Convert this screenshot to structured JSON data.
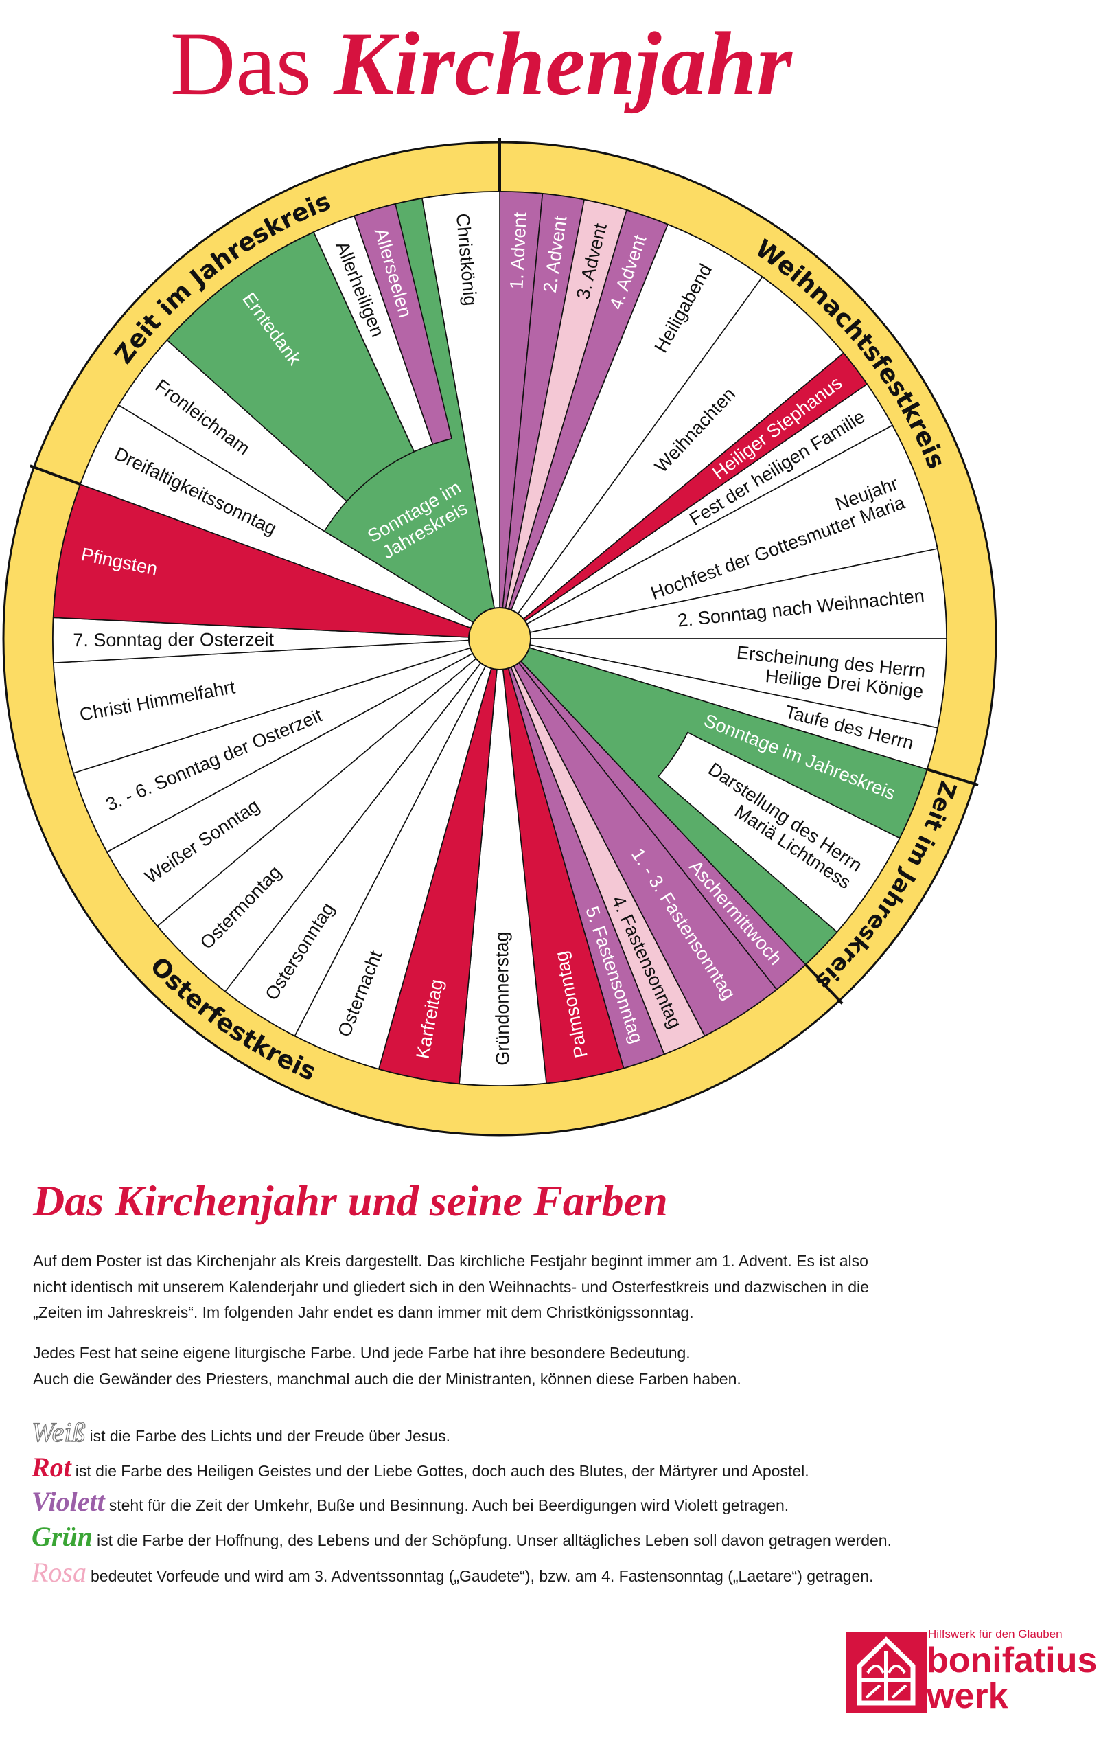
{
  "title": {
    "part1": "Das",
    "part2": "Kirchenjahr"
  },
  "colors": {
    "violet": "#b565a7",
    "rosa": "#f4c8d5",
    "red": "#d6123f",
    "green": "#5aad69",
    "white": "#ffffff",
    "yellow": "#fcdc64"
  },
  "wheel": {
    "circles": [
      {
        "label": "Weihnachtsfestkreis"
      },
      {
        "label": "Zeit im Jahreskreis"
      },
      {
        "label": "Osterfestkreis"
      },
      {
        "label": "Zeit im Jahreskreis"
      }
    ],
    "segments": [
      {
        "lines": [
          "1. Advent"
        ],
        "color": "violet"
      },
      {
        "lines": [
          "2. Advent"
        ],
        "color": "violet"
      },
      {
        "lines": [
          "3. Advent"
        ],
        "color": "rosa"
      },
      {
        "lines": [
          "4. Advent"
        ],
        "color": "violet"
      },
      {
        "lines": [
          "Heiligabend"
        ],
        "color": "white"
      },
      {
        "lines": [
          "Weihnachten"
        ],
        "color": "white"
      },
      {
        "lines": [
          "Heiliger Stephanus"
        ],
        "color": "red"
      },
      {
        "lines": [
          "Fest der heiligen Familie"
        ],
        "color": "white"
      },
      {
        "lines": [
          "Neujahr",
          "Hochfest der Gottesmutter Maria"
        ],
        "color": "white"
      },
      {
        "lines": [
          "2. Sonntag nach Weihnachten"
        ],
        "color": "white"
      },
      {
        "lines": [
          "Erscheinung des Herrn",
          "Heilige Drei Könige"
        ],
        "color": "white"
      },
      {
        "lines": [
          "Taufe des Herrn"
        ],
        "color": "white"
      },
      {
        "lines": [
          "Sonntage im Jahreskreis"
        ],
        "color": "green"
      },
      {
        "lines": [
          "Darstellung des Herrn",
          "Mariä Lichtmess"
        ],
        "color": "white"
      },
      {
        "lines": [
          "Aschermittwoch"
        ],
        "color": "violet"
      },
      {
        "lines": [
          "1. - 3. Fastensonntag"
        ],
        "color": "violet"
      },
      {
        "lines": [
          "4. Fastensonntag"
        ],
        "color": "rosa"
      },
      {
        "lines": [
          "5. Fastensonntag"
        ],
        "color": "violet"
      },
      {
        "lines": [
          "Palmsonntag"
        ],
        "color": "red"
      },
      {
        "lines": [
          "Gründonnerstag"
        ],
        "color": "white"
      },
      {
        "lines": [
          "Karfreitag"
        ],
        "color": "red"
      },
      {
        "lines": [
          "Osternacht"
        ],
        "color": "white"
      },
      {
        "lines": [
          "Ostersonntag"
        ],
        "color": "white"
      },
      {
        "lines": [
          "Ostermontag"
        ],
        "color": "white"
      },
      {
        "lines": [
          "Weißer Sonntag"
        ],
        "color": "white"
      },
      {
        "lines": [
          "3. - 6. Sonntag der Osterzeit"
        ],
        "color": "white"
      },
      {
        "lines": [
          "Christi Himmelfahrt"
        ],
        "color": "white"
      },
      {
        "lines": [
          "7. Sonntag der Osterzeit"
        ],
        "color": "white"
      },
      {
        "lines": [
          "Pfingsten"
        ],
        "color": "red"
      },
      {
        "lines": [
          "Dreifaltigkeitssonntag"
        ],
        "color": "white"
      },
      {
        "lines": [
          "Sonntage im",
          "Jahreskreis"
        ],
        "color": "green"
      },
      {
        "lines": [
          "Fronleichnam"
        ],
        "color": "white"
      },
      {
        "lines": [
          "Erntedank"
        ],
        "color": "green"
      },
      {
        "lines": [
          "Allerheiligen"
        ],
        "color": "white"
      },
      {
        "lines": [
          "Allerseelen"
        ],
        "color": "violet"
      },
      {
        "lines": [
          "Christkönig"
        ],
        "color": "white"
      }
    ]
  },
  "section": {
    "heading": "Das Kirchenjahr und seine Farben",
    "para1": [
      "Auf dem Poster ist das Kirchenjahr als Kreis dargestellt. Das kirchliche Festjahr beginnt immer am 1. Advent. Es ist also",
      "nicht identisch mit unserem Kalenderjahr und gliedert sich in den Weihnachts- und Osterfestkreis und dazwischen in die",
      "„Zeiten im Jahreskreis“. Im folgenden Jahr endet es dann immer mit dem Christkönigssonntag."
    ],
    "para2": [
      "Jedes Fest hat seine eigene liturgische Farbe. Und jede Farbe hat ihre besondere Bedeutung.",
      "Auch die Gewänder des Priesters, manchmal auch die der Ministranten, können diese Farben haben."
    ],
    "colors": [
      {
        "word": "Weiß",
        "text": "ist die Farbe des Lichts und der Freude über Jesus.",
        "hex": "#ffffff"
      },
      {
        "word": "Rot",
        "text": "ist die Farbe des Heiligen Geistes und der Liebe Gottes, doch auch des Blutes, der Märtyrer und Apostel.",
        "hex": "#d6123f"
      },
      {
        "word": "Violett",
        "text": "steht für die Zeit der Umkehr, Buße und Besinnung. Auch bei Beerdigungen wird Violett getragen.",
        "hex": "#9b5fa8"
      },
      {
        "word": "Grün",
        "text": "ist die Farbe der Hoffnung, des Lebens und der Schöpfung. Unser alltägliches Leben soll davon getragen werden.",
        "hex": "#3aa535"
      },
      {
        "word": "Rosa",
        "text": "bedeutet Vorfeude und wird am 3. Adventssonntag („Gaudete“), bzw. am 4. Fastensonntag („Laetare“) getragen.",
        "hex": "#f2a9c0"
      }
    ]
  },
  "logo": {
    "tagline": "Hilfswerk für den Glauben",
    "name1": "bonifatius",
    "name2": "werk"
  }
}
